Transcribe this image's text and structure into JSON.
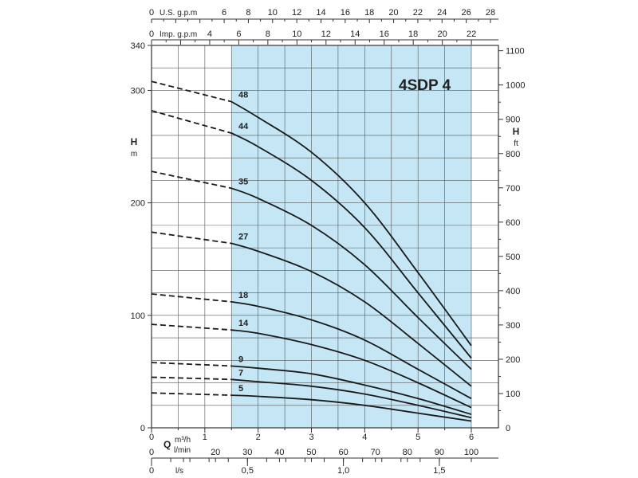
{
  "chart_data": {
    "type": "line",
    "title": "4SDP 4",
    "q_axis_label": "Q",
    "left_axis": {
      "label": "H",
      "unit": "m",
      "range": [
        0,
        340
      ],
      "ticks": [
        "0",
        "100",
        "200",
        "300",
        "340"
      ]
    },
    "right_axis": {
      "label": "H",
      "unit": "ft",
      "range": [
        0,
        1115
      ],
      "ticks": [
        "0",
        "100",
        "200",
        "300",
        "400",
        "500",
        "600",
        "700",
        "800",
        "900",
        "1000",
        "1100"
      ]
    },
    "top_axis_usgpm": {
      "unit": "U.S. g.p.m",
      "range": [
        0,
        26.4
      ],
      "ticks": [
        "0",
        "6",
        "8",
        "10",
        "12",
        "14",
        "16",
        "18",
        "20",
        "22",
        "24",
        "26",
        "28"
      ]
    },
    "top_axis_impgpm": {
      "unit": "Imp. g.p.m",
      "range": [
        0,
        22
      ],
      "ticks": [
        "0",
        "4",
        "6",
        "8",
        "10",
        "12",
        "14",
        "16",
        "18",
        "20",
        "22"
      ]
    },
    "bottom_axis_m3h": {
      "unit": "m³/h",
      "range": [
        0,
        6
      ],
      "ticks": [
        "0",
        "1",
        "2",
        "3",
        "4",
        "5",
        "6"
      ]
    },
    "bottom_axis_lmin": {
      "unit": "l/min",
      "range": [
        0,
        100
      ],
      "ticks": [
        "0",
        "20",
        "30",
        "40",
        "50",
        "60",
        "70",
        "80",
        "90",
        "100"
      ]
    },
    "bottom_axis_ls": {
      "unit": "l/s",
      "range": [
        0,
        1.667
      ],
      "ticks": [
        "0",
        "0,5",
        "1,0",
        "1,5"
      ]
    },
    "recommended_range_m3h": [
      1.5,
      6
    ],
    "grid": true,
    "x_unit": "m³/h",
    "y_unit": "m",
    "series": [
      {
        "name": "48",
        "x": [
          0,
          1.5,
          2,
          3,
          4,
          5,
          6
        ],
        "y": [
          308,
          290,
          276,
          245,
          200,
          138,
          73
        ]
      },
      {
        "name": "44",
        "x": [
          0,
          1.5,
          2,
          3,
          4,
          5,
          6
        ],
        "y": [
          282,
          262,
          250,
          220,
          178,
          120,
          62
        ]
      },
      {
        "name": "35",
        "x": [
          0,
          1.5,
          2,
          3,
          4,
          5,
          6
        ],
        "y": [
          228,
          213,
          204,
          180,
          145,
          98,
          52
        ]
      },
      {
        "name": "27",
        "x": [
          0,
          1.5,
          2,
          3,
          4,
          5,
          6
        ],
        "y": [
          174,
          164,
          157,
          139,
          112,
          75,
          37
        ]
      },
      {
        "name": "18",
        "x": [
          0,
          1.5,
          2,
          3,
          4,
          5,
          6
        ],
        "y": [
          119,
          112,
          108,
          96,
          78,
          52,
          26
        ]
      },
      {
        "name": "14",
        "x": [
          0,
          1.5,
          2,
          3,
          4,
          5,
          6
        ],
        "y": [
          92,
          87,
          84,
          74,
          60,
          40,
          18
        ]
      },
      {
        "name": "9",
        "x": [
          0,
          1.5,
          2,
          3,
          4,
          5,
          6
        ],
        "y": [
          58,
          55,
          53,
          48,
          38,
          26,
          12
        ]
      },
      {
        "name": "7",
        "x": [
          0,
          1.5,
          2,
          3,
          4,
          5,
          6
        ],
        "y": [
          45,
          43,
          41,
          37,
          30,
          20,
          9
        ]
      },
      {
        "name": "5",
        "x": [
          0,
          1.5,
          2,
          3,
          4,
          5,
          6
        ],
        "y": [
          31,
          29,
          28,
          25,
          20,
          13,
          6
        ]
      }
    ]
  }
}
